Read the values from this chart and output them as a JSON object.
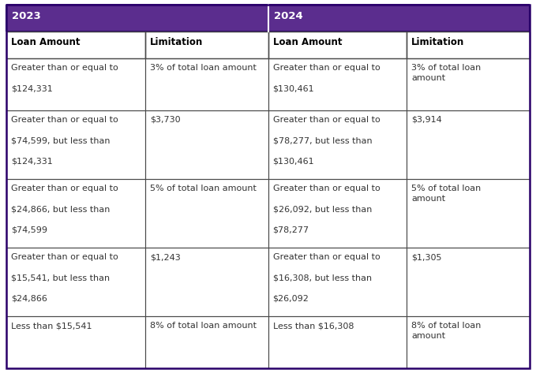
{
  "header_bg_color": "#5b2d8e",
  "header_text_color": "#ffffff",
  "border_color": "#4a4a4a",
  "header_border_color": "#1a0050",
  "cell_bg_color": "#ffffff",
  "text_color": "#333333",
  "sub_headers": [
    "Loan Amount",
    "Limitation",
    "Loan Amount",
    "Limitation"
  ],
  "rows": [
    [
      "Greater than or equal to\n \n$124,331",
      "3% of total loan amount",
      "Greater than or equal to\n \n$130,461",
      "3% of total loan\namount"
    ],
    [
      "Greater than or equal to\n \n$74,599, but less than\n \n$124,331",
      "$3,730",
      "Greater than or equal to\n \n$78,277, but less than\n \n$130,461",
      "$3,914"
    ],
    [
      "Greater than or equal to\n \n$24,866, but less than\n \n$74,599",
      "5% of total loan amount",
      "Greater than or equal to\n \n$26,092, but less than\n \n$78,277",
      "5% of total loan\namount"
    ],
    [
      "Greater than or equal to\n \n$15,541, but less than\n \n$24,866",
      "$1,243",
      "Greater than or equal to\n \n$16,308, but less than\n \n$26,092",
      "$1,305"
    ],
    [
      "Less than $15,541",
      "8% of total loan amount",
      "Less than $16,308",
      "8% of total loan\namount"
    ]
  ],
  "fig_width": 6.79,
  "fig_height": 4.73,
  "dpi": 100
}
